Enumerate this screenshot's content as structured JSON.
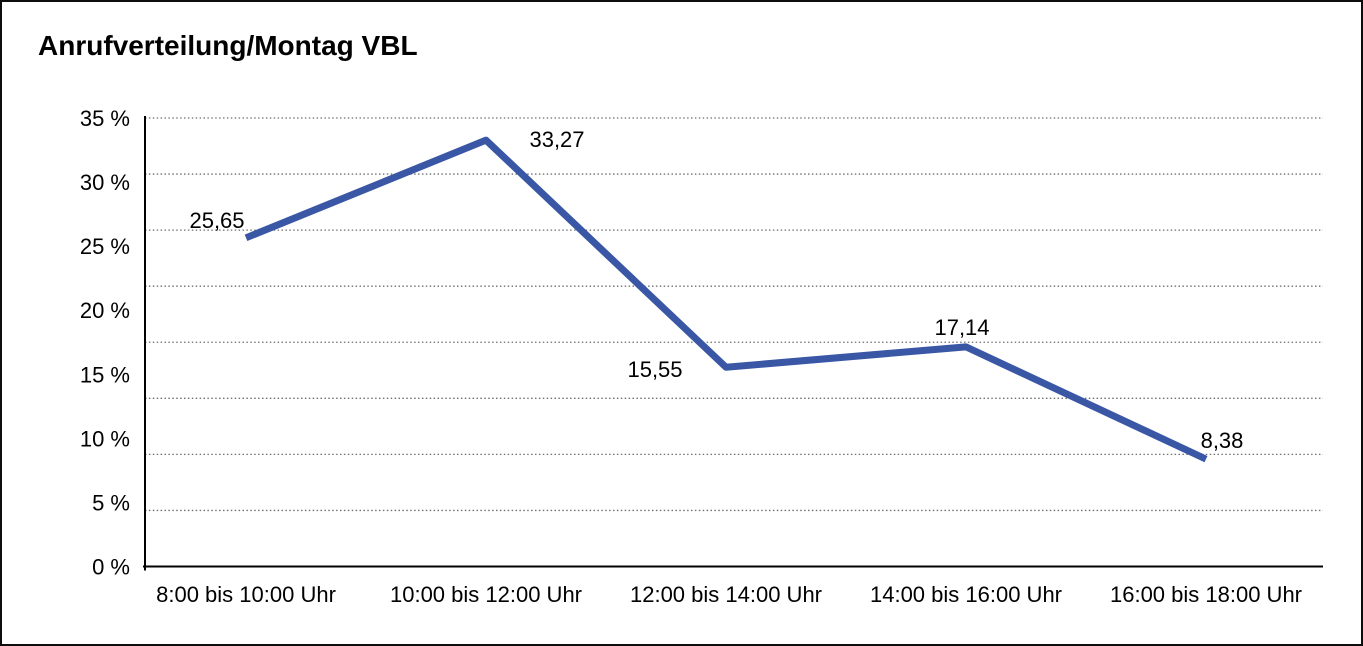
{
  "page": {
    "background": "#ffffff",
    "border_color": "#0d0d0d"
  },
  "chart_data": {
    "type": "line",
    "title": "Anrufverteilung/Montag VBL",
    "categories": [
      "8:00 bis 10:00 Uhr",
      "10:00 bis 12:00 Uhr",
      "12:00 bis 14:00 Uhr",
      "14:00 bis 16:00 Uhr",
      "16:00 bis 18:00 Uhr"
    ],
    "values": [
      25.65,
      33.27,
      15.55,
      17.14,
      8.38
    ],
    "point_labels": [
      "25,65",
      "33,27",
      "15,55",
      "17,14",
      "8,38"
    ],
    "y_tick_labels": [
      "35 %",
      "30 %",
      "25 %",
      "20 %",
      "15 %",
      "10 %",
      "5 %",
      "0 %"
    ],
    "ylim": [
      0,
      35
    ],
    "xlabel": "",
    "ylabel": "",
    "grid": {
      "style": "dotted",
      "intervals": 8,
      "color": "#6f6f6f"
    },
    "legend": "none",
    "line_color": "#3a57a6",
    "axis_color": "#000000",
    "text_color": "#000000"
  }
}
